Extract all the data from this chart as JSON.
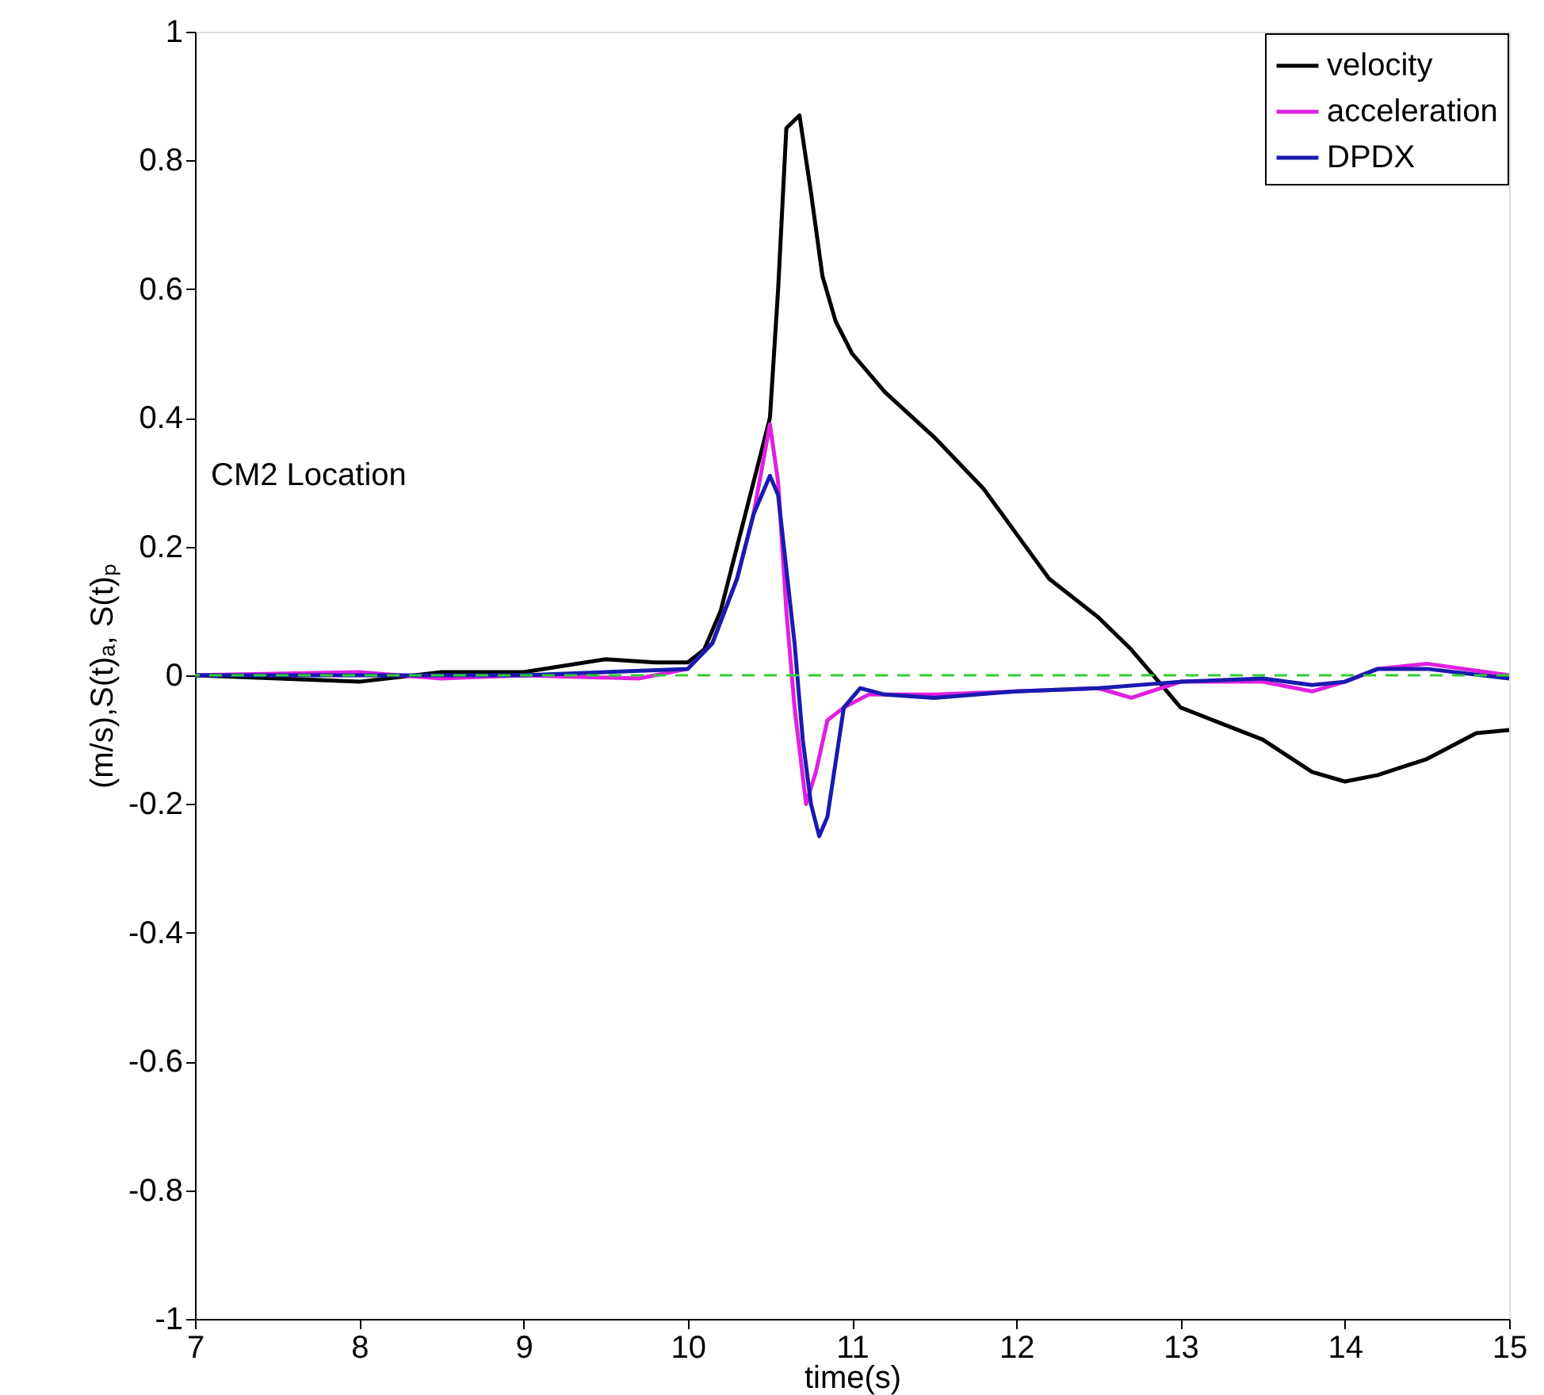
{
  "chart_data": {
    "type": "line",
    "xlabel": "time(s)",
    "ylabel": "(m/s),S(t)ₐ, S(t)ₚ",
    "annotations": [
      "CM2 Location"
    ],
    "xlim": [
      7,
      15
    ],
    "xticks": [
      7,
      8,
      9,
      10,
      11,
      12,
      13,
      14,
      15
    ],
    "ylim": [
      -1,
      1
    ],
    "yticks": [
      -1,
      -0.8,
      -0.6,
      -0.4,
      -0.2,
      0,
      0.2,
      0.4,
      0.6,
      0.8,
      1
    ],
    "grid": false,
    "legend": "top right",
    "marker": "none",
    "line_style": "solid",
    "ref_lines": [
      {
        "axis": "y",
        "value": 0,
        "color": "#33cc33",
        "line_style": "dashed"
      }
    ],
    "series": [
      {
        "name": "velocity",
        "color": "#000000",
        "x": [
          7,
          8,
          8.5,
          9,
          9.5,
          9.8,
          10,
          10.1,
          10.2,
          10.3,
          10.45,
          10.5,
          10.55,
          10.6,
          10.68,
          10.75,
          10.82,
          10.9,
          11,
          11.2,
          11.5,
          11.8,
          12,
          12.2,
          12.5,
          12.7,
          12.9,
          13,
          13.2,
          13.5,
          13.8,
          14,
          14.2,
          14.5,
          14.8,
          15
        ],
        "values": [
          0,
          -0.01,
          0.005,
          0.005,
          0.025,
          0.02,
          0.02,
          0.04,
          0.1,
          0.2,
          0.35,
          0.4,
          0.6,
          0.85,
          0.87,
          0.75,
          0.62,
          0.55,
          0.5,
          0.44,
          0.37,
          0.29,
          0.22,
          0.15,
          0.09,
          0.04,
          -0.02,
          -0.05,
          -0.07,
          -0.1,
          -0.15,
          -0.165,
          -0.155,
          -0.13,
          -0.09,
          -0.085
        ]
      },
      {
        "name": "acceleration",
        "color": "#e020e0",
        "x": [
          7,
          8,
          8.5,
          9,
          9.7,
          10,
          10.15,
          10.3,
          10.4,
          10.5,
          10.55,
          10.6,
          10.65,
          10.72,
          10.78,
          10.85,
          10.95,
          11.1,
          11.5,
          12,
          12.5,
          12.7,
          13,
          13.5,
          13.8,
          14,
          14.2,
          14.5,
          15
        ],
        "values": [
          0,
          0.005,
          -0.005,
          0,
          -0.005,
          0.01,
          0.05,
          0.15,
          0.25,
          0.39,
          0.3,
          0.1,
          -0.05,
          -0.2,
          -0.15,
          -0.07,
          -0.05,
          -0.03,
          -0.03,
          -0.025,
          -0.02,
          -0.035,
          -0.01,
          -0.01,
          -0.025,
          -0.01,
          0.01,
          0.018,
          0
        ]
      },
      {
        "name": "DPDX",
        "color": "#1a1ab0",
        "x": [
          7,
          8,
          9,
          10,
          10.15,
          10.3,
          10.4,
          10.5,
          10.55,
          10.65,
          10.7,
          10.75,
          10.8,
          10.85,
          10.95,
          11.05,
          11.2,
          11.5,
          12,
          12.5,
          13,
          13.5,
          13.8,
          14,
          14.2,
          14.5,
          15
        ],
        "values": [
          0,
          0,
          0,
          0.01,
          0.05,
          0.15,
          0.25,
          0.31,
          0.28,
          0.05,
          -0.1,
          -0.2,
          -0.25,
          -0.22,
          -0.05,
          -0.02,
          -0.03,
          -0.035,
          -0.025,
          -0.02,
          -0.01,
          -0.005,
          -0.015,
          -0.01,
          0.01,
          0.01,
          -0.005
        ]
      }
    ]
  }
}
